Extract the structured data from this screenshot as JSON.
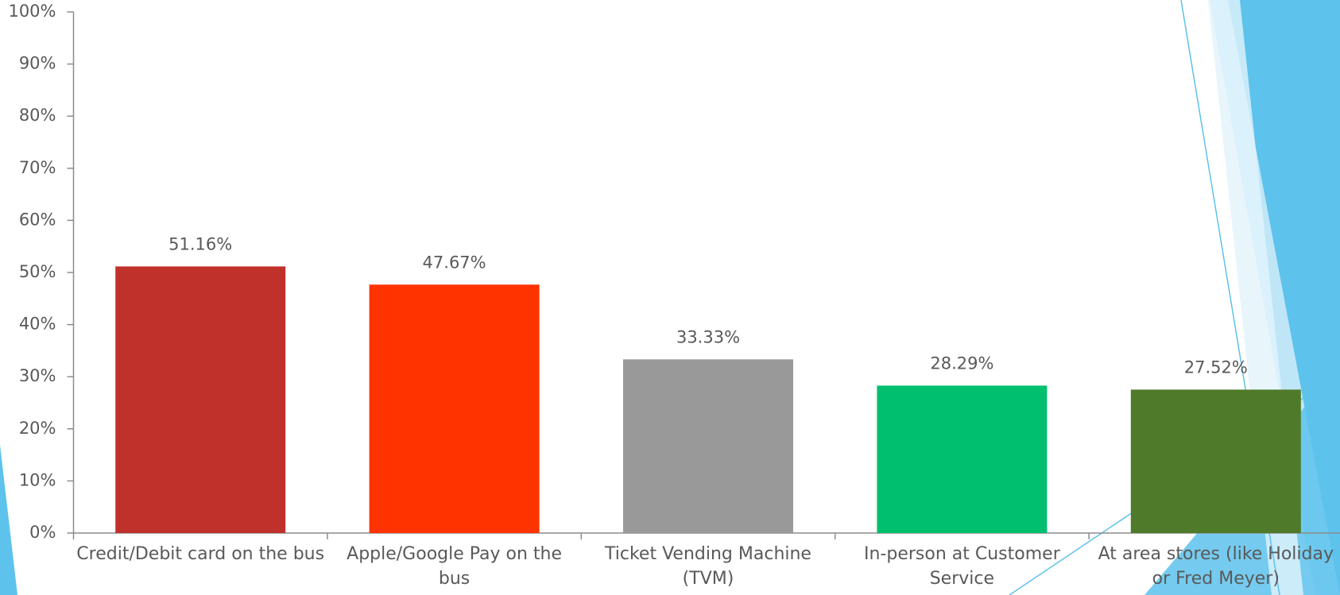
{
  "chart_data": {
    "type": "bar",
    "categories": [
      "Credit/Debit card on the bus",
      "Apple/Google Pay on the bus",
      "Ticket Vending Machine (TVM)",
      "In-person at Customer Service",
      "At area stores (like Holiday or Fred Meyer)"
    ],
    "values": [
      51.16,
      47.67,
      33.33,
      28.29,
      27.52
    ],
    "value_labels": [
      "51.16%",
      "47.67%",
      "33.33%",
      "28.29%",
      "27.52%"
    ],
    "colors": [
      "#c0312b",
      "#ff3300",
      "#999999",
      "#00bf6f",
      "#4e7a2a"
    ],
    "ylim": [
      0,
      100
    ],
    "yticks": [
      {
        "value": 0,
        "label": "0%"
      },
      {
        "value": 10,
        "label": "10%"
      },
      {
        "value": 20,
        "label": "20%"
      },
      {
        "value": 30,
        "label": "30%"
      },
      {
        "value": 40,
        "label": "40%"
      },
      {
        "value": 50,
        "label": "50%"
      },
      {
        "value": 60,
        "label": "60%"
      },
      {
        "value": 70,
        "label": "70%"
      },
      {
        "value": 80,
        "label": "80%"
      },
      {
        "value": 90,
        "label": "90%"
      },
      {
        "value": 100,
        "label": "100%"
      }
    ]
  }
}
